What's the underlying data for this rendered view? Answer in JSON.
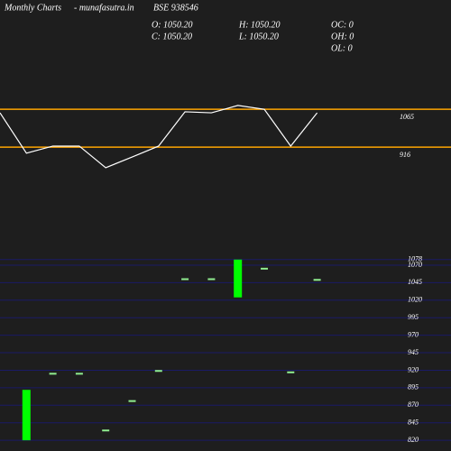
{
  "header": {
    "site": "Monthly Charts",
    "source": "- munafasutra.in",
    "symbol": "BSE 938546",
    "stats": [
      "O: 1050.20",
      "H: 1050.20",
      "OC: 0",
      "C: 1050.20",
      "L: 1050.20",
      "OH: 0",
      "OL: 0"
    ]
  },
  "chart_data": [
    {
      "type": "line",
      "color": "#ffffff",
      "tick_color": "#ffa500",
      "values": [
        1051,
        892,
        920,
        920,
        835,
        877,
        920,
        1055,
        1051,
        1080,
        1065,
        920,
        1051
      ],
      "ylim": [
        785,
        1140
      ],
      "yticks": [
        1065,
        916
      ]
    },
    {
      "type": "candle",
      "color": "#00ff00",
      "flat_color": "#90ee90",
      "grid_color": "#1a1a66",
      "open": [
        820,
        915,
        915,
        834,
        876,
        919,
        1050,
        1050,
        1024,
        1065,
        917,
        1049
      ],
      "close": [
        892,
        915,
        915,
        834,
        876,
        919,
        1050,
        1050,
        1078,
        1065,
        917,
        1049
      ],
      "ylim": [
        815,
        1088
      ],
      "yticks": [
        1078,
        1070,
        1045,
        1020,
        995,
        970,
        945,
        920,
        895,
        870,
        845,
        820
      ]
    }
  ]
}
